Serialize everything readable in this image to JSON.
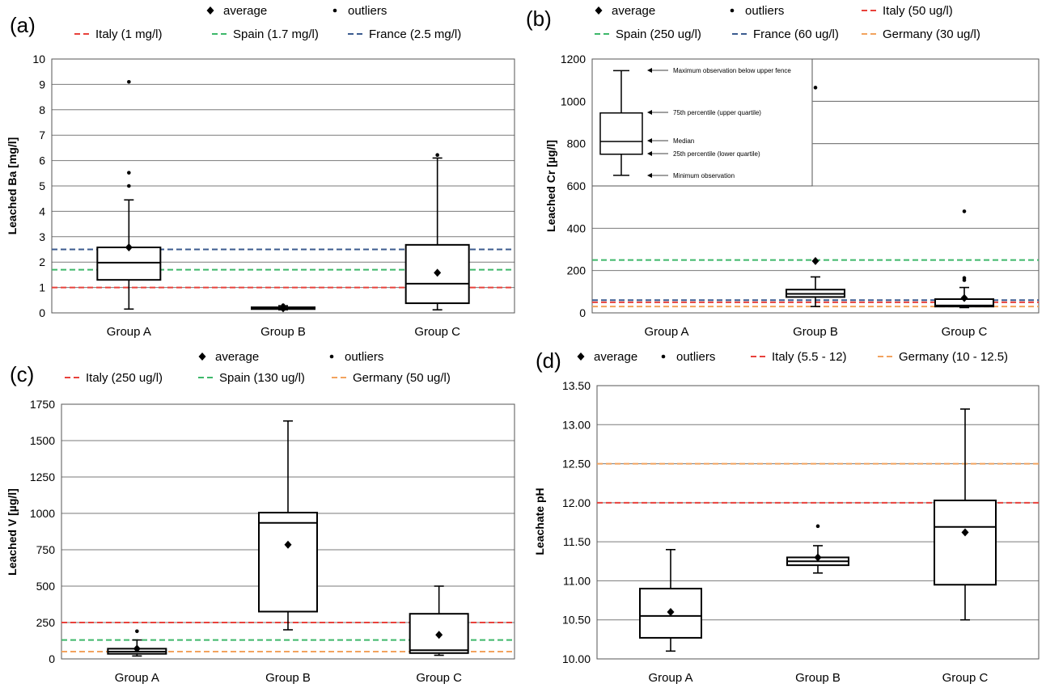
{
  "chart_data": [
    {
      "panel_label": "(a)",
      "type": "box",
      "ylabel": "Leached Ba [mg/l]",
      "ylim": [
        0,
        10
      ],
      "yticks": [
        "0",
        "1",
        "2",
        "3",
        "4",
        "5",
        "6",
        "7",
        "8",
        "9",
        "10"
      ],
      "categories": [
        "Group A",
        "Group B",
        "Group C"
      ],
      "legend": [
        "average",
        "outliers",
        "Italy (1 mg/l)",
        "Spain (1.7 mg/l)",
        "France (2.5 mg/l)"
      ],
      "boxes": [
        {
          "category": "Group A",
          "min": 0.15,
          "q1": 1.3,
          "median": 1.98,
          "q3": 2.58,
          "max": 4.45,
          "average": 2.58,
          "outliers": [
            5.0,
            5.52,
            9.1
          ]
        },
        {
          "category": "Group B",
          "min": 0.12,
          "q1": 0.15,
          "median": 0.18,
          "q3": 0.22,
          "max": 0.28,
          "average": 0.18,
          "outliers": [
            0.3
          ]
        },
        {
          "category": "Group C",
          "min": 0.12,
          "q1": 0.38,
          "median": 1.15,
          "q3": 2.68,
          "max": 6.1,
          "average": 1.58,
          "outliers": [
            6.22
          ]
        }
      ],
      "limits": [
        {
          "name": "Italy (1 mg/l)",
          "value": 1.0,
          "color": "#e8413b"
        },
        {
          "name": "Spain (1.7 mg/l)",
          "value": 1.7,
          "color": "#3db86a"
        },
        {
          "name": "France (2.5 mg/l)",
          "value": 2.5,
          "color": "#3b5b8f"
        }
      ]
    },
    {
      "panel_label": "(b)",
      "type": "box",
      "ylabel": "Leached Cr [µg/l]",
      "ylim": [
        0,
        1200
      ],
      "yticks": [
        "0",
        "200",
        "400",
        "600",
        "800",
        "1000",
        "1200"
      ],
      "categories": [
        "Group A",
        "Group B",
        "Group C"
      ],
      "legend": [
        "average",
        "outliers",
        "Italy (50 ug/l)",
        "Spain (250 ug/l)",
        "France (60 ug/l)",
        "Germany (30 ug/l)"
      ],
      "boxes": [
        {
          "category": "Group B",
          "min": 30,
          "q1": 75,
          "median": 90,
          "q3": 110,
          "max": 170,
          "average": 245,
          "outliers": [
            245,
            1065
          ]
        },
        {
          "category": "Group C",
          "min": 25,
          "q1": 30,
          "median": 35,
          "q3": 65,
          "max": 120,
          "average": 70,
          "outliers": [
            155,
            165,
            480
          ]
        }
      ],
      "limits": [
        {
          "name": "Italy (50 ug/l)",
          "value": 50,
          "color": "#e8413b"
        },
        {
          "name": "Spain (250 ug/l)",
          "value": 250,
          "color": "#3db86a"
        },
        {
          "name": "France (60 ug/l)",
          "value": 60,
          "color": "#3b5b8f"
        },
        {
          "name": "Germany (30 ug/l)",
          "value": 30,
          "color": "#f2a35e"
        }
      ],
      "inset": {
        "annotations": [
          "Maximum observation below upper fence",
          "75th percentile (upper quartile)",
          "Median",
          "25th percentile (lower quartile)",
          "Minimum observation"
        ],
        "box": {
          "min": 650,
          "q1": 750,
          "median": 810,
          "q3": 945,
          "max": 1145
        }
      }
    },
    {
      "panel_label": "(c)",
      "type": "box",
      "ylabel": "Leached V [µg/l]",
      "ylim": [
        0,
        1750
      ],
      "yticks": [
        "0",
        "250",
        "500",
        "750",
        "1000",
        "1250",
        "1500",
        "1750"
      ],
      "categories": [
        "Group A",
        "Group B",
        "Group C"
      ],
      "legend": [
        "average",
        "outliers",
        "Italy (250 ug/l)",
        "Spain (130 ug/l)",
        "Germany (50 ug/l)"
      ],
      "boxes": [
        {
          "category": "Group A",
          "min": 20,
          "q1": 35,
          "median": 50,
          "q3": 70,
          "max": 130,
          "average": 70,
          "outliers": [
            190
          ]
        },
        {
          "category": "Group B",
          "min": 200,
          "q1": 325,
          "median": 935,
          "q3": 1005,
          "max": 1635,
          "average": 785,
          "outliers": []
        },
        {
          "category": "Group C",
          "min": 25,
          "q1": 40,
          "median": 60,
          "q3": 310,
          "max": 500,
          "average": 165,
          "outliers": []
        }
      ],
      "limits": [
        {
          "name": "Italy (250 ug/l)",
          "value": 250,
          "color": "#e8413b"
        },
        {
          "name": "Spain (130 ug/l)",
          "value": 130,
          "color": "#3db86a"
        },
        {
          "name": "Germany (50 ug/l)",
          "value": 50,
          "color": "#f2a35e"
        }
      ]
    },
    {
      "panel_label": "(d)",
      "type": "box",
      "ylabel": "Leachate pH",
      "ylim": [
        10,
        13.5
      ],
      "yticks": [
        "10.00",
        "10.50",
        "11.00",
        "11.50",
        "12.00",
        "12.50",
        "13.00",
        "13.50"
      ],
      "categories": [
        "Group A",
        "Group B",
        "Group C"
      ],
      "legend": [
        "average",
        "outliers",
        "Italy (5.5 - 12)",
        "Germany (10 - 12.5)"
      ],
      "boxes": [
        {
          "category": "Group A",
          "min": 10.1,
          "q1": 10.27,
          "median": 10.55,
          "q3": 10.9,
          "max": 11.4,
          "average": 10.6,
          "outliers": []
        },
        {
          "category": "Group B",
          "min": 11.1,
          "q1": 11.2,
          "median": 11.25,
          "q3": 11.3,
          "max": 11.45,
          "average": 11.3,
          "outliers": [
            11.7
          ]
        },
        {
          "category": "Group C",
          "min": 10.5,
          "q1": 10.95,
          "median": 11.69,
          "q3": 12.03,
          "max": 13.2,
          "average": 11.62,
          "outliers": []
        }
      ],
      "limits": [
        {
          "name": "Italy (5.5 - 12)",
          "value": 12.0,
          "color": "#e8413b"
        },
        {
          "name": "Germany (10 - 12.5)",
          "value": 12.5,
          "color": "#f2a35e"
        }
      ]
    }
  ]
}
